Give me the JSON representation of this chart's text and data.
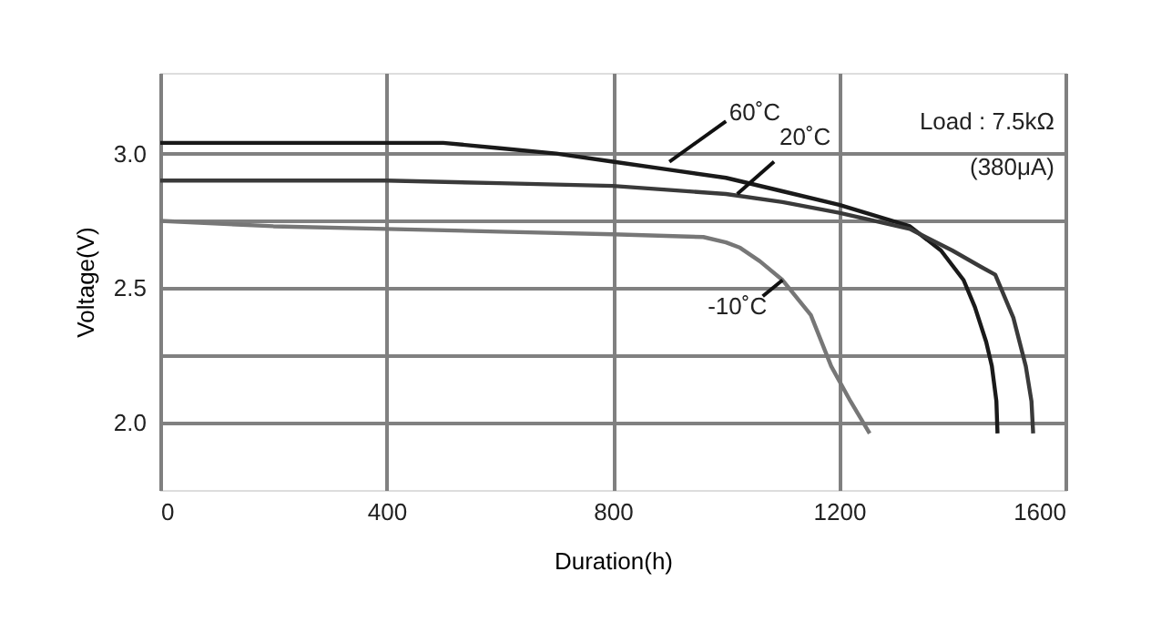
{
  "chart_data": {
    "type": "line",
    "xlabel": "Duration(h)",
    "ylabel": "Voltage(V)",
    "xlim": [
      0,
      1600
    ],
    "xticks": [
      0,
      400,
      800,
      1200,
      1600
    ],
    "ylim": [
      1.75,
      3.3
    ],
    "yticks": [
      {
        "value": 2.0,
        "label": "2.0"
      },
      {
        "value": 2.25,
        "label": null
      },
      {
        "value": 2.5,
        "label": "2.5"
      },
      {
        "value": 2.75,
        "label": null
      },
      {
        "value": 3.0,
        "label": "3.0"
      }
    ],
    "grid": true,
    "marker": "none",
    "line_style": "solid",
    "series": [
      {
        "color": "#1a1a1a",
        "x": [
          0,
          200,
          400,
          500,
          600,
          700,
          800,
          900,
          1000,
          1100,
          1200,
          1325,
          1380,
          1420,
          1440,
          1460,
          1470,
          1478,
          1480
        ],
        "values": [
          3.04,
          3.04,
          3.04,
          3.04,
          3.02,
          3.0,
          2.97,
          2.94,
          2.91,
          2.86,
          2.81,
          2.73,
          2.64,
          2.53,
          2.43,
          2.3,
          2.21,
          2.08,
          1.96
        ]
      },
      {
        "color": "#3a3a3a",
        "x": [
          0,
          200,
          400,
          600,
          800,
          1000,
          1100,
          1200,
          1325,
          1400,
          1450,
          1476,
          1508,
          1530,
          1540,
          1543
        ],
        "values": [
          2.9,
          2.9,
          2.9,
          2.89,
          2.88,
          2.85,
          2.82,
          2.78,
          2.72,
          2.64,
          2.58,
          2.55,
          2.39,
          2.21,
          2.08,
          1.96
        ]
      },
      {
        "color": "#777777",
        "x": [
          0,
          200,
          400,
          600,
          800,
          960,
          1000,
          1025,
          1060,
          1100,
          1150,
          1186,
          1220,
          1254
        ],
        "values": [
          2.75,
          2.73,
          2.72,
          2.71,
          2.7,
          2.69,
          2.67,
          2.65,
          2.6,
          2.53,
          2.4,
          2.21,
          2.08,
          1.96
        ]
      }
    ],
    "annotations": [
      {
        "text": "60˚C",
        "x": 900,
        "y": 2.97
      },
      {
        "text": "20˚C",
        "x": 1020,
        "y": 2.85
      },
      {
        "text": "-10˚C",
        "x": 1100,
        "y": 2.53
      },
      "Load : 7.5kΩ",
      "(380μA)"
    ]
  }
}
